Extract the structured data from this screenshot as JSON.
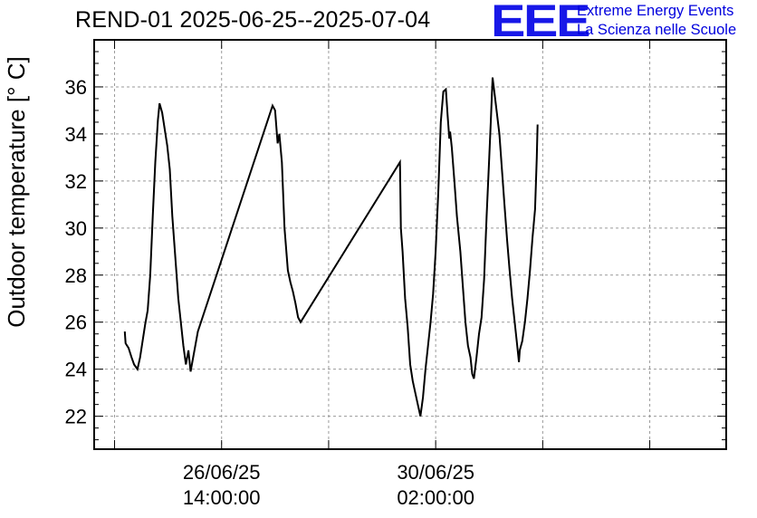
{
  "title": "REND-01 2025-06-25--2025-07-04",
  "logo": {
    "mark": "EEE",
    "line1": "Extreme Energy Events",
    "line2": "La Scienza nelle Scuole",
    "color": "#1818e8"
  },
  "chart_data": {
    "type": "line",
    "title": "REND-01 2025-06-25--2025-07-04",
    "ylabel": "Outdoor temperature [° C]",
    "xlabel": "",
    "ylim": [
      20.6,
      38.0
    ],
    "yticks": [
      22,
      24,
      26,
      28,
      30,
      32,
      34,
      36
    ],
    "xlim": [
      "2025-06-24 12:00",
      "2025-07-04 20:00"
    ],
    "xticks": [
      {
        "t": "2025-06-26 14:00",
        "date": "26/06/25",
        "time": "14:00:00"
      },
      {
        "t": "2025-06-30 02:00",
        "date": "30/06/25",
        "time": "02:00:00"
      }
    ],
    "grid": true,
    "line_color": "#000000",
    "series": [
      {
        "points": [
          [
            "2025-06-25 00:00",
            25.6
          ],
          [
            "2025-06-25 00:20",
            25.1
          ],
          [
            "2025-06-25 01:30",
            24.9
          ],
          [
            "2025-06-25 02:40",
            24.5
          ],
          [
            "2025-06-25 03:40",
            24.2
          ],
          [
            "2025-06-25 05:00",
            24.0
          ],
          [
            "2025-06-25 06:00",
            24.5
          ],
          [
            "2025-06-25 07:00",
            25.2
          ],
          [
            "2025-06-25 08:00",
            25.9
          ],
          [
            "2025-06-25 09:00",
            26.5
          ],
          [
            "2025-06-25 10:00",
            28.0
          ],
          [
            "2025-06-25 11:00",
            30.5
          ],
          [
            "2025-06-25 12:00",
            32.8
          ],
          [
            "2025-06-25 13:00",
            34.6
          ],
          [
            "2025-06-25 13:40",
            35.3
          ],
          [
            "2025-06-25 14:40",
            34.9
          ],
          [
            "2025-06-25 15:40",
            34.2
          ],
          [
            "2025-06-25 16:40",
            33.5
          ],
          [
            "2025-06-25 17:40",
            32.5
          ],
          [
            "2025-06-25 18:40",
            30.5
          ],
          [
            "2025-06-25 20:00",
            28.5
          ],
          [
            "2025-06-25 21:00",
            27.0
          ],
          [
            "2025-06-25 22:00",
            26.0
          ],
          [
            "2025-06-25 23:00",
            25.0
          ],
          [
            "2025-06-26 00:00",
            24.2
          ],
          [
            "2025-06-26 01:00",
            24.8
          ],
          [
            "2025-06-26 01:50",
            23.9
          ],
          [
            "2025-06-26 03:00",
            24.6
          ],
          [
            "2025-06-26 04:40",
            25.6
          ],
          [
            "2025-06-27 10:00",
            35.2
          ],
          [
            "2025-06-27 11:00",
            35.0
          ],
          [
            "2025-06-27 12:00",
            33.6
          ],
          [
            "2025-06-27 12:40",
            34.0
          ],
          [
            "2025-06-27 13:40",
            32.8
          ],
          [
            "2025-06-27 14:40",
            30.0
          ],
          [
            "2025-06-27 16:00",
            28.2
          ],
          [
            "2025-06-27 17:00",
            27.7
          ],
          [
            "2025-06-27 18:00",
            27.3
          ],
          [
            "2025-06-27 19:00",
            26.8
          ],
          [
            "2025-06-27 20:00",
            26.2
          ],
          [
            "2025-06-27 21:00",
            26.0
          ],
          [
            "2025-06-29 12:00",
            32.8
          ],
          [
            "2025-06-29 12:20",
            30.0
          ],
          [
            "2025-06-29 13:00",
            29.0
          ],
          [
            "2025-06-29 14:00",
            27.0
          ],
          [
            "2025-06-29 15:00",
            25.8
          ],
          [
            "2025-06-29 16:00",
            24.2
          ],
          [
            "2025-06-29 17:00",
            23.5
          ],
          [
            "2025-06-29 18:00",
            23.0
          ],
          [
            "2025-06-29 19:00",
            22.5
          ],
          [
            "2025-06-29 20:00",
            22.0
          ],
          [
            "2025-06-29 21:00",
            22.8
          ],
          [
            "2025-06-29 22:00",
            24.0
          ],
          [
            "2025-06-29 23:00",
            25.0
          ],
          [
            "2025-06-30 00:00",
            26.0
          ],
          [
            "2025-06-30 01:00",
            27.2
          ],
          [
            "2025-06-30 02:00",
            29.0
          ],
          [
            "2025-06-30 03:00",
            31.5
          ],
          [
            "2025-06-30 04:00",
            34.5
          ],
          [
            "2025-06-30 05:00",
            35.8
          ],
          [
            "2025-06-30 06:00",
            35.9
          ],
          [
            "2025-06-30 06:40",
            34.8
          ],
          [
            "2025-06-30 07:20",
            33.8
          ],
          [
            "2025-06-30 07:40",
            34.1
          ],
          [
            "2025-06-30 08:20",
            33.4
          ],
          [
            "2025-06-30 09:20",
            32.0
          ],
          [
            "2025-06-30 10:20",
            30.5
          ],
          [
            "2025-06-30 11:40",
            29.0
          ],
          [
            "2025-06-30 12:40",
            27.5
          ],
          [
            "2025-06-30 13:40",
            26.0
          ],
          [
            "2025-06-30 14:40",
            25.0
          ],
          [
            "2025-06-30 15:40",
            24.5
          ],
          [
            "2025-06-30 16:20",
            23.8
          ],
          [
            "2025-06-30 17:00",
            23.6
          ],
          [
            "2025-06-30 18:00",
            24.5
          ],
          [
            "2025-06-30 19:00",
            25.5
          ],
          [
            "2025-06-30 20:00",
            26.2
          ],
          [
            "2025-06-30 21:00",
            27.8
          ],
          [
            "2025-06-30 22:00",
            30.5
          ],
          [
            "2025-06-30 23:00",
            33.0
          ],
          [
            "2025-06-30 23:40",
            34.6
          ],
          [
            "2025-07-01 00:20",
            36.4
          ],
          [
            "2025-07-01 01:00",
            35.8
          ],
          [
            "2025-07-01 02:00",
            34.9
          ],
          [
            "2025-07-01 03:00",
            34.0
          ],
          [
            "2025-07-01 04:00",
            32.5
          ],
          [
            "2025-07-01 05:00",
            31.0
          ],
          [
            "2025-07-01 06:00",
            29.5
          ],
          [
            "2025-07-01 07:00",
            28.2
          ],
          [
            "2025-07-01 08:00",
            27.0
          ],
          [
            "2025-07-01 09:00",
            26.0
          ],
          [
            "2025-07-01 10:00",
            25.0
          ],
          [
            "2025-07-01 10:40",
            24.3
          ],
          [
            "2025-07-01 11:00",
            24.8
          ],
          [
            "2025-07-01 12:00",
            25.2
          ],
          [
            "2025-07-01 13:00",
            26.0
          ],
          [
            "2025-07-01 14:00",
            27.0
          ],
          [
            "2025-07-01 15:00",
            28.2
          ],
          [
            "2025-07-01 16:00",
            29.6
          ],
          [
            "2025-07-01 17:00",
            30.8
          ],
          [
            "2025-07-01 17:40",
            33.0
          ],
          [
            "2025-07-01 18:00",
            34.4
          ]
        ]
      }
    ]
  }
}
